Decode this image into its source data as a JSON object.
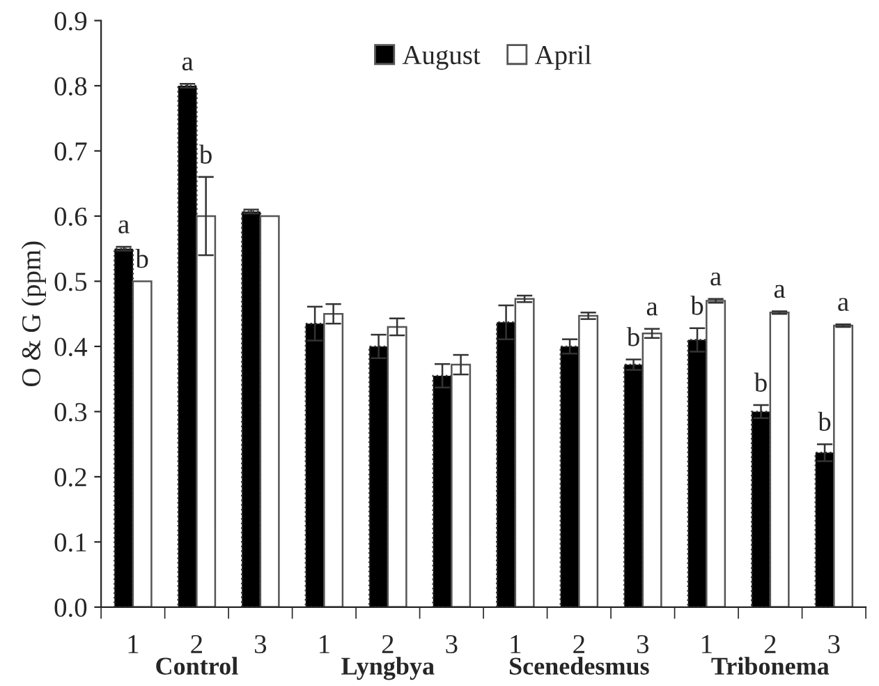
{
  "chart_data": {
    "type": "bar",
    "ylabel": "O & G (ppm)",
    "categories": [
      "1",
      "2",
      "3",
      "1",
      "2",
      "3",
      "1",
      "2",
      "3",
      "1",
      "2",
      "3"
    ],
    "series": [
      {
        "name": "August",
        "color": "#000000",
        "values": [
          0.55,
          0.8,
          0.607,
          0.435,
          0.4,
          0.355,
          0.437,
          0.4,
          0.372,
          0.41,
          0.3,
          0.237
        ],
        "errors": [
          0.003,
          0.003,
          0.003,
          0.026,
          0.018,
          0.018,
          0.026,
          0.011,
          0.008,
          0.018,
          0.01,
          0.013
        ],
        "value_labels": [
          "a",
          "a",
          null,
          null,
          null,
          null,
          null,
          null,
          "b",
          "b",
          "b",
          "b"
        ]
      },
      {
        "name": "April",
        "color": "#ffffff",
        "values": [
          0.5,
          0.6,
          0.6,
          0.45,
          0.43,
          0.372,
          0.473,
          0.447,
          0.42,
          0.47,
          0.452,
          0.432
        ],
        "errors": [
          null,
          0.06,
          null,
          0.015,
          0.013,
          0.015,
          0.005,
          0.005,
          0.007,
          0.003,
          0.002,
          0.002
        ],
        "value_labels": [
          "b",
          "b",
          null,
          null,
          null,
          null,
          null,
          null,
          "a",
          "a",
          "a",
          "a"
        ]
      }
    ],
    "annotations": [
      "Control",
      "Lyngbya",
      "Scenedesmus",
      "Tribonema"
    ],
    "ylim": [
      0,
      0.9
    ],
    "yticks": [
      {
        "value": 0,
        "label": "0.0"
      },
      0.1,
      0.2,
      0.3,
      0.4,
      0.5,
      0.6,
      0.7,
      0.8,
      0.9
    ],
    "grid": false,
    "legend": "top"
  }
}
